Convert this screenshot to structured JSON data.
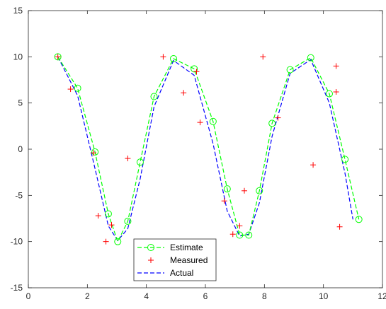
{
  "chart_data": {
    "type": "line",
    "title": "",
    "xlabel": "",
    "ylabel": "",
    "xlim": [
      0,
      12
    ],
    "ylim": [
      -15,
      15
    ],
    "xticks": [
      0,
      2,
      4,
      6,
      8,
      10,
      12
    ],
    "yticks": [
      -15,
      -10,
      -5,
      0,
      5,
      10,
      15
    ],
    "grid": false,
    "legend_position": "bottom-left",
    "series": [
      {
        "name": "Estimate",
        "color": "#00ff00",
        "style": "dashed line with circle markers",
        "x": [
          1.0,
          1.67,
          2.26,
          2.71,
          3.03,
          3.37,
          3.79,
          4.26,
          4.92,
          5.62,
          6.26,
          6.74,
          7.16,
          7.47,
          7.83,
          8.26,
          8.87,
          9.57,
          10.2,
          10.73,
          11.2
        ],
        "y": [
          10.0,
          6.6,
          -0.3,
          -7.0,
          -10.0,
          -7.8,
          -1.4,
          5.7,
          9.8,
          8.7,
          3.0,
          -4.3,
          -9.3,
          -9.3,
          -4.5,
          2.8,
          8.6,
          9.9,
          6.0,
          -1.1,
          -7.6
        ]
      },
      {
        "name": "Measured",
        "color": "#ff0000",
        "style": "plus markers",
        "x": [
          1.0,
          1.43,
          2.21,
          2.37,
          2.63,
          2.82,
          3.37,
          4.57,
          5.26,
          5.7,
          5.82,
          6.64,
          6.93,
          7.16,
          7.32,
          7.95,
          8.46,
          9.65,
          10.43,
          10.43,
          10.55
        ],
        "y": [
          10.0,
          6.5,
          -0.4,
          -7.2,
          -10.0,
          -8.2,
          -1.0,
          10.0,
          6.1,
          8.4,
          2.9,
          -5.6,
          -9.2,
          -8.3,
          -4.5,
          10.0,
          3.4,
          -1.7,
          9.0,
          6.2,
          -8.4
        ]
      },
      {
        "name": "Actual",
        "color": "#0000ff",
        "style": "dashed line",
        "x": [
          1.0,
          1.67,
          2.26,
          2.71,
          3.03,
          3.37,
          3.79,
          4.26,
          4.92,
          5.62,
          6.26,
          6.74,
          7.16,
          7.47,
          7.83,
          8.26,
          8.87,
          9.57,
          10.2,
          10.73,
          11.0
        ],
        "y": [
          10.0,
          5.8,
          -2.1,
          -8.3,
          -9.9,
          -8.6,
          -3.2,
          4.6,
          9.6,
          8.0,
          0.6,
          -6.7,
          -9.4,
          -9.2,
          -5.8,
          1.4,
          8.2,
          9.7,
          5.0,
          -2.6,
          -7.6
        ]
      }
    ]
  }
}
